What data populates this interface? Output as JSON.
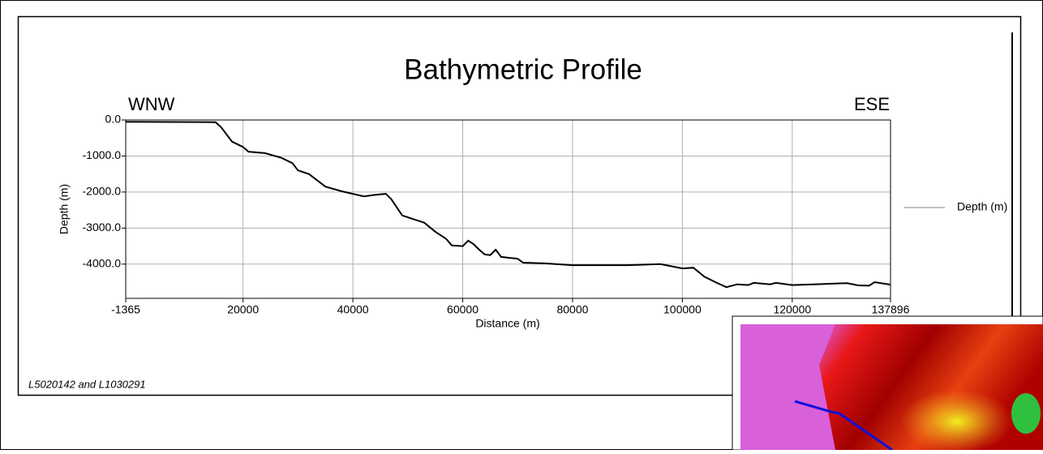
{
  "chart_data": {
    "type": "line",
    "title": "Bathymetric Profile",
    "left_label": "WNW",
    "right_label": "ESE",
    "x_label": "Distance (m)",
    "y_label": "Depth (m)",
    "footnote": "L5020142 and L1030291",
    "x": [
      -1365,
      15000,
      16000,
      18000,
      20000,
      21000,
      24000,
      27000,
      29000,
      30000,
      32000,
      35000,
      38000,
      40000,
      42000,
      44000,
      46000,
      47000,
      49000,
      53000,
      55000,
      57000,
      58000,
      60000,
      61000,
      62000,
      63000,
      64000,
      65000,
      66000,
      67000,
      70000,
      71000,
      75000,
      80000,
      90000,
      96000,
      98000,
      100000,
      102000,
      104000,
      106000,
      108000,
      110000,
      112000,
      113000,
      116000,
      117000,
      120000,
      124000,
      130000,
      132000,
      134000,
      135000,
      137896
    ],
    "series": [
      {
        "name": "Depth (m)",
        "color": "#000000",
        "values": [
          -50,
          -60,
          -200,
          -600,
          -750,
          -880,
          -920,
          -1050,
          -1200,
          -1400,
          -1500,
          -1850,
          -1980,
          -2050,
          -2120,
          -2080,
          -2050,
          -2200,
          -2650,
          -2850,
          -3100,
          -3300,
          -3480,
          -3500,
          -3350,
          -3450,
          -3600,
          -3730,
          -3750,
          -3600,
          -3800,
          -3850,
          -3960,
          -3980,
          -4030,
          -4030,
          -4000,
          -4060,
          -4120,
          -4100,
          -4350,
          -4500,
          -4640,
          -4560,
          -4580,
          -4520,
          -4560,
          -4520,
          -4580,
          -4560,
          -4530,
          -4590,
          -4600,
          -4500,
          -4570
        ]
      }
    ],
    "xlim": [
      -1365,
      137896
    ],
    "xticks": [
      -1365,
      20000,
      40000,
      60000,
      80000,
      100000,
      120000,
      137896
    ],
    "ylim": [
      -4950,
      0
    ],
    "yticks": [
      {
        "value": 0,
        "label": "0.0"
      },
      {
        "value": -1000,
        "label": "-1000.0"
      },
      {
        "value": -2000,
        "label": "-2000.0"
      },
      {
        "value": -3000,
        "label": "-3000.0"
      },
      {
        "value": -4000,
        "label": "-4000.0"
      }
    ],
    "grid": true,
    "legend": "right",
    "legend_color": "#808080"
  }
}
